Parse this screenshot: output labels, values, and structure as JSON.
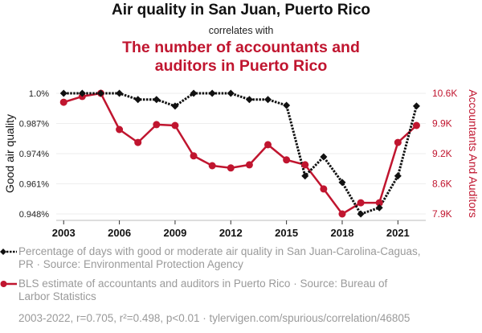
{
  "header": {
    "title": "Air quality in San Juan, Puerto Rico",
    "subtitle": "correlates with",
    "title2_line1": "The number of accountants and",
    "title2_line2": "auditors in Puerto Rico"
  },
  "legend": {
    "series1_line1": "Percentage of days with good or moderate air quality in San Juan-Carolina-Caguas,",
    "series1_line2": "PR · Source: Environmental Protection Agency",
    "series2_line1": "BLS estimate of accountants and auditors in Puerto Rico · Source: Bureau of",
    "series2_line2": "Larbor Statistics"
  },
  "footer": "2003-2022, r=0.705, r²=0.498, p<0.01 · tylervigen.com/spurious/correlation/46805",
  "colors": {
    "series1": "#111111",
    "series2": "#c0152f",
    "grid": "#eeeeee",
    "legend_text": "#9a9a9a"
  },
  "chart_data": {
    "type": "line",
    "title": "Air quality in San Juan, Puerto Rico",
    "xlabel": "",
    "x": [
      2003,
      2004,
      2005,
      2006,
      2007,
      2008,
      2009,
      2010,
      2011,
      2012,
      2013,
      2014,
      2015,
      2016,
      2017,
      2018,
      2019,
      2020,
      2021,
      2022
    ],
    "x_ticks": [
      2003,
      2006,
      2009,
      2012,
      2015,
      2018,
      2021
    ],
    "x_tick_labels": [
      "2003",
      "2006",
      "2009",
      "2012",
      "2015",
      "2018",
      "2021"
    ],
    "xlim": [
      2002.6,
      2022.5
    ],
    "grid": "horizontal",
    "legend_position": "bottom",
    "y_left": {
      "label": "Good air quality",
      "ylim": [
        0.948,
        1.0
      ],
      "ticks": [
        1.0,
        0.987,
        0.974,
        0.961,
        0.948
      ],
      "tick_labels": [
        "1.0%",
        "0.987%",
        "0.974%",
        "0.961%",
        "0.948%"
      ]
    },
    "y_right": {
      "label": "Accountants And Auditors",
      "ylim": [
        7900,
        10600
      ],
      "ticks": [
        10600,
        9925,
        9250,
        8575,
        7900
      ],
      "tick_labels": [
        "10.6K",
        "9.9K",
        "9.2K",
        "8.6K",
        "7.9K"
      ]
    },
    "series": [
      {
        "name": "Percentage of days with good or moderate air quality in San Juan-Carolina-Caguas, PR",
        "axis": "left",
        "style": "dotted",
        "marker": "diamond",
        "values": [
          1.0,
          1.0,
          1.0,
          1.0,
          0.9973,
          0.9973,
          0.9945,
          1.0,
          1.0,
          1.0,
          0.9973,
          0.9973,
          0.9948,
          0.9644,
          0.9726,
          0.9616,
          0.948,
          0.9507,
          0.9644,
          0.9945
        ]
      },
      {
        "name": "BLS estimate of accountants and auditors in Puerto Rico",
        "axis": "right",
        "style": "solid",
        "marker": "circle",
        "values": [
          10400,
          10530,
          10600,
          9790,
          9500,
          9900,
          9880,
          9200,
          8980,
          8930,
          9000,
          9450,
          9110,
          9000,
          8460,
          7900,
          8150,
          8150,
          9500,
          9880
        ]
      }
    ]
  }
}
